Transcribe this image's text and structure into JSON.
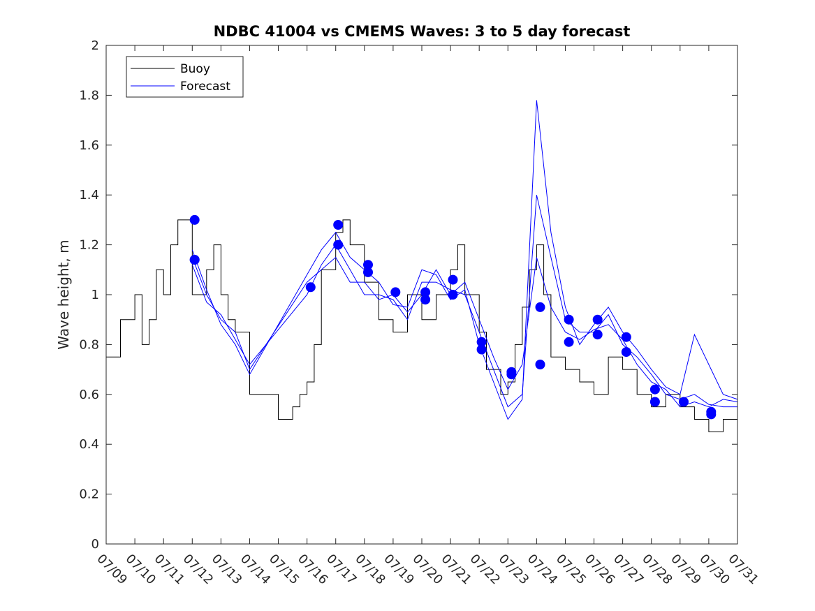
{
  "chart_data": {
    "type": "line",
    "title": "NDBC 41004 vs CMEMS Waves: 3 to 5 day forecast",
    "xlabel": "",
    "ylabel": "Wave height, m",
    "xlim": [
      "07/09",
      "07/31"
    ],
    "ylim": [
      0,
      2
    ],
    "x_tick_labels": [
      "07/09",
      "07/10",
      "07/11",
      "07/12",
      "07/13",
      "07/14",
      "07/15",
      "07/16",
      "07/17",
      "07/18",
      "07/19",
      "07/20",
      "07/21",
      "07/22",
      "07/23",
      "07/24",
      "07/25",
      "07/26",
      "07/27",
      "07/28",
      "07/29",
      "07/30",
      "07/31"
    ],
    "y_ticks": [
      0,
      0.2,
      0.4,
      0.6,
      0.8,
      1,
      1.2,
      1.4,
      1.6,
      1.8,
      2
    ],
    "y_tick_labels": [
      "0",
      "0.2",
      "0.4",
      "0.6",
      "0.8",
      "1",
      "1.2",
      "1.4",
      "1.6",
      "1.8",
      "2"
    ],
    "grid": false,
    "legend_position": "top-left",
    "colors": {
      "buoy": "#000000",
      "forecast": "#0000ff",
      "markers": "#0000ff"
    },
    "series": [
      {
        "name": "Buoy",
        "x": [
          "07/09 00:00",
          "07/09 12:00",
          "07/10 00:00",
          "07/10 06:00",
          "07/10 12:00",
          "07/10 18:00",
          "07/11 00:00",
          "07/11 06:00",
          "07/11 12:00",
          "07/12 00:00",
          "07/12 12:00",
          "07/12 18:00",
          "07/13 00:00",
          "07/13 06:00",
          "07/13 12:00",
          "07/14 00:00",
          "07/14 12:00",
          "07/15 00:00",
          "07/15 12:00",
          "07/15 18:00",
          "07/16 00:00",
          "07/16 06:00",
          "07/16 12:00",
          "07/17 00:00",
          "07/17 06:00",
          "07/17 12:00",
          "07/18 00:00",
          "07/18 12:00",
          "07/19 00:00",
          "07/19 12:00",
          "07/20 00:00",
          "07/20 12:00",
          "07/21 00:00",
          "07/21 06:00",
          "07/21 12:00",
          "07/22 00:00",
          "07/22 06:00",
          "07/22 18:00",
          "07/23 00:00",
          "07/23 06:00",
          "07/23 12:00",
          "07/23 18:00",
          "07/24 00:00",
          "07/24 06:00",
          "07/24 12:00",
          "07/25 00:00",
          "07/25 12:00",
          "07/26 00:00",
          "07/26 12:00",
          "07/27 00:00",
          "07/27 12:00",
          "07/28 00:00",
          "07/28 12:00",
          "07/29 00:00",
          "07/29 12:00",
          "07/30 00:00",
          "07/30 12:00",
          "07/31 00:00"
        ],
        "y": [
          0.75,
          0.9,
          1.0,
          0.8,
          0.9,
          1.1,
          1.0,
          1.2,
          1.3,
          1.0,
          1.1,
          1.2,
          1.0,
          0.9,
          0.85,
          0.6,
          0.6,
          0.5,
          0.55,
          0.6,
          0.65,
          0.8,
          1.1,
          1.25,
          1.3,
          1.2,
          1.05,
          0.9,
          0.85,
          1.0,
          0.9,
          1.0,
          1.1,
          1.2,
          1.0,
          0.85,
          0.7,
          0.6,
          0.65,
          0.8,
          0.95,
          1.1,
          1.2,
          1.0,
          0.75,
          0.7,
          0.65,
          0.6,
          0.75,
          0.7,
          0.6,
          0.55,
          0.6,
          0.55,
          0.5,
          0.45,
          0.5,
          0.55
        ]
      },
      {
        "name": "Forecast",
        "x": [
          "07/12 00:00",
          "07/12 12:00",
          "07/13 00:00",
          "07/13 12:00",
          "07/14 00:00",
          "07/16 00:00",
          "07/16 12:00",
          "07/17 00:00",
          "07/17 12:00",
          "07/18 00:00",
          "07/18 12:00",
          "07/19 00:00",
          "07/19 12:00",
          "07/20 00:00",
          "07/20 12:00",
          "07/21 00:00",
          "07/21 12:00",
          "07/22 00:00",
          "07/22 12:00",
          "07/23 00:00",
          "07/23 12:00",
          "07/24 00:00",
          "07/24 12:00",
          "07/25 00:00",
          "07/25 12:00",
          "07/26 00:00",
          "07/26 12:00",
          "07/27 00:00",
          "07/27 12:00",
          "07/28 00:00",
          "07/28 12:00",
          "07/29 00:00",
          "07/29 12:00",
          "07/30 00:00",
          "07/30 12:00",
          "07/31 00:00"
        ],
        "y": [
          1.15,
          1.0,
          0.9,
          0.85,
          0.7,
          1.05,
          1.1,
          1.15,
          1.05,
          1.05,
          0.98,
          1.0,
          0.93,
          1.0,
          1.1,
          1.0,
          1.05,
          0.9,
          0.75,
          0.62,
          0.72,
          1.15,
          0.95,
          0.85,
          0.82,
          0.86,
          0.88,
          0.82,
          0.72,
          0.65,
          0.62,
          0.55,
          0.57,
          0.55,
          0.58,
          0.57
        ]
      },
      {
        "name": "",
        "x": [
          "07/12 00:00",
          "07/12 12:00",
          "07/13 00:00",
          "07/13 12:00",
          "07/14 00:00",
          "07/16 00:00",
          "07/16 12:00",
          "07/17 00:00",
          "07/17 12:00",
          "07/18 00:00",
          "07/18 12:00",
          "07/19 00:00",
          "07/19 12:00",
          "07/20 00:00",
          "07/20 12:00",
          "07/21 00:00",
          "07/21 12:00",
          "07/22 00:00",
          "07/22 12:00",
          "07/23 00:00",
          "07/23 12:00",
          "07/24 00:00",
          "07/24 12:00",
          "07/25 00:00",
          "07/25 12:00",
          "07/26 00:00",
          "07/26 12:00",
          "07/27 00:00",
          "07/27 12:00",
          "07/28 00:00",
          "07/28 12:00",
          "07/29 00:00",
          "07/29 12:00",
          "07/30 00:00",
          "07/30 12:00",
          "07/31 00:00"
        ],
        "y": [
          1.12,
          0.97,
          0.92,
          0.82,
          0.72,
          1.0,
          1.12,
          1.2,
          1.1,
          1.0,
          1.0,
          0.98,
          0.9,
          1.05,
          1.05,
          1.02,
          1.0,
          0.85,
          0.7,
          0.55,
          0.6,
          1.4,
          1.15,
          0.9,
          0.85,
          0.85,
          0.92,
          0.8,
          0.75,
          0.68,
          0.6,
          0.58,
          0.6,
          0.56,
          0.55,
          0.55
        ]
      },
      {
        "name": "",
        "x": [
          "07/12 00:00",
          "07/12 12:00",
          "07/13 00:00",
          "07/13 12:00",
          "07/14 00:00",
          "07/16 00:00",
          "07/16 12:00",
          "07/17 00:00",
          "07/17 12:00",
          "07/18 00:00",
          "07/18 12:00",
          "07/19 00:00",
          "07/19 12:00",
          "07/20 00:00",
          "07/20 12:00",
          "07/21 00:00",
          "07/21 12:00",
          "07/22 00:00",
          "07/22 12:00",
          "07/23 00:00",
          "07/23 12:00",
          "07/24 00:00",
          "07/24 12:00",
          "07/25 00:00",
          "07/25 12:00",
          "07/26 00:00",
          "07/26 12:00",
          "07/27 00:00",
          "07/27 12:00",
          "07/28 00:00",
          "07/28 12:00",
          "07/29 00:00",
          "07/29 12:00",
          "07/30 00:00",
          "07/30 12:00",
          "07/31 00:00"
        ],
        "y": [
          1.18,
          1.02,
          0.88,
          0.8,
          0.68,
          1.08,
          1.18,
          1.25,
          1.15,
          1.1,
          1.05,
          0.96,
          0.95,
          1.1,
          1.08,
          0.98,
          1.02,
          0.8,
          0.65,
          0.5,
          0.58,
          1.78,
          1.25,
          0.95,
          0.8,
          0.88,
          0.95,
          0.85,
          0.78,
          0.7,
          0.63,
          0.6,
          0.84,
          0.72,
          0.6,
          0.58
        ]
      }
    ],
    "markers": {
      "x": [
        "07/12 02:00",
        "07/12 02:00",
        "07/12 02:00",
        "07/16 03:00",
        "07/17 02:00",
        "07/17 02:00",
        "07/18 03:00",
        "07/18 03:00",
        "07/19 02:00",
        "07/20 03:00",
        "07/20 03:00",
        "07/21 02:00",
        "07/21 02:00",
        "07/22 02:00",
        "07/22 02:00",
        "07/23 03:00",
        "07/23 03:00",
        "07/24 03:00",
        "07/24 03:00",
        "07/25 03:00",
        "07/25 03:00",
        "07/26 03:00",
        "07/26 03:00",
        "07/27 03:00",
        "07/27 03:00",
        "07/28 03:00",
        "07/28 03:00",
        "07/29 03:00",
        "07/30 02:00",
        "07/30 02:00"
      ],
      "y": [
        1.3,
        1.14,
        1.14,
        1.03,
        1.28,
        1.2,
        1.12,
        1.09,
        1.01,
        1.01,
        0.98,
        1.06,
        1.0,
        0.81,
        0.78,
        0.69,
        0.68,
        0.95,
        0.72,
        0.9,
        0.81,
        0.9,
        0.84,
        0.83,
        0.77,
        0.62,
        0.57,
        0.57,
        0.53,
        0.52
      ]
    }
  }
}
